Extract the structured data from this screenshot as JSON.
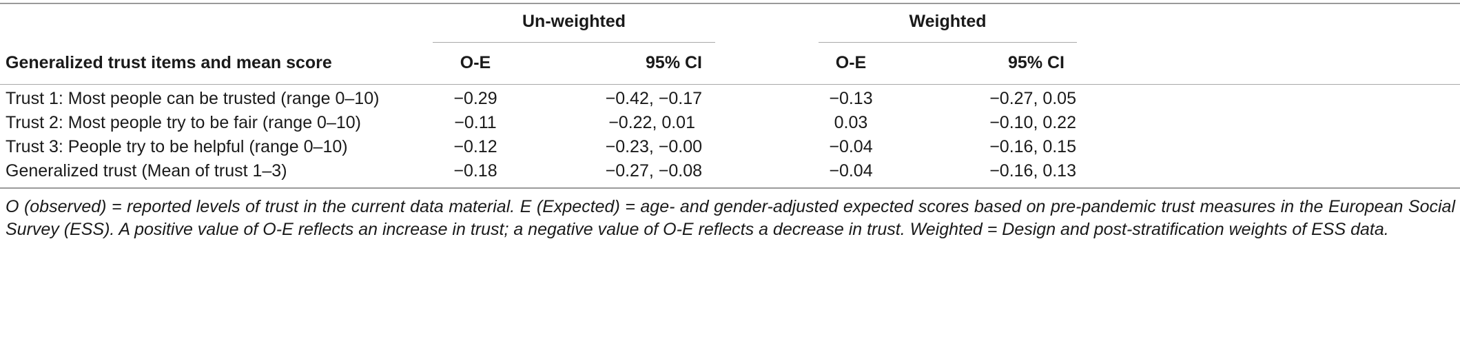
{
  "table": {
    "group_headers": {
      "unweighted": "Un-weighted",
      "weighted": "Weighted"
    },
    "column_headers": {
      "items": "Generalized trust items and mean score",
      "uw_oe": "O-E",
      "uw_ci": "95% CI",
      "w_oe": "O-E",
      "w_ci": "95% CI"
    },
    "rows": [
      {
        "label": "Trust 1: Most people can be trusted (range 0–10)",
        "uw_oe": "−0.29",
        "uw_ci": "−0.42, −0.17",
        "w_oe": "−0.13",
        "w_ci": "−0.27, 0.05"
      },
      {
        "label": "Trust 2: Most people try to be fair (range 0–10)",
        "uw_oe": "−0.11",
        "uw_ci": "−0.22, 0.01",
        "w_oe": "0.03",
        "w_ci": "−0.10, 0.22"
      },
      {
        "label": "Trust 3: People try to be helpful (range 0–10)",
        "uw_oe": "−0.12",
        "uw_ci": "−0.23, −0.00",
        "w_oe": "−0.04",
        "w_ci": "−0.16, 0.15"
      },
      {
        "label": "Generalized trust (Mean of trust 1–3)",
        "uw_oe": "−0.18",
        "uw_ci": "−0.27, −0.08",
        "w_oe": "−0.04",
        "w_ci": "−0.16, 0.13"
      }
    ],
    "footnote": "O (observed) = reported levels of trust in the current data material. E (Expected) = age- and gender-adjusted expected scores based on pre-pandemic trust measures in the European Social Survey (ESS). A positive value of O-E reflects an increase in trust; a negative value of O-E reflects a decrease in trust. Weighted = Design and post-stratification weights of ESS data."
  }
}
